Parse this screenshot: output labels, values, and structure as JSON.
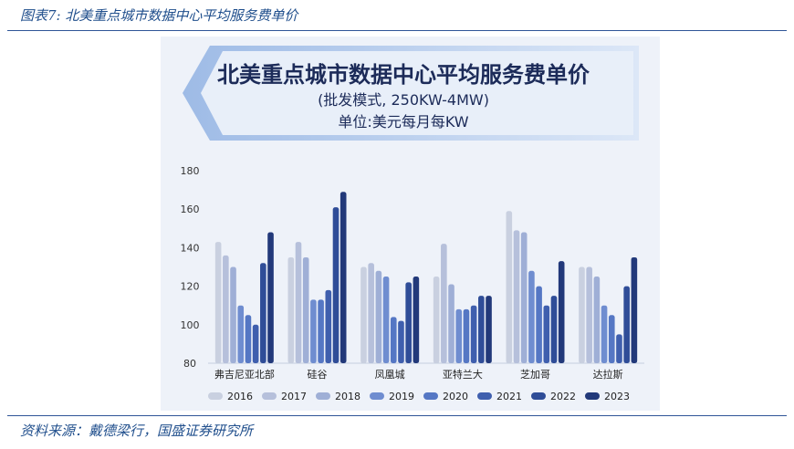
{
  "figure": {
    "caption": "图表7: 北美重点城市数据中心平均服务费单价",
    "source": "资料来源：戴德梁行，国盛证券研究所"
  },
  "chart_data": {
    "type": "bar",
    "title": "北美重点城市数据中心平均服务费单价",
    "subtitle": "(批发模式, 250KW-4MW)",
    "unit_label": "单位:美元每月每KW",
    "xlabel": "",
    "ylabel": "",
    "ylim": [
      80,
      180
    ],
    "yticks": [
      80,
      100,
      120,
      140,
      160,
      180
    ],
    "grid": false,
    "legend_position": "bottom",
    "categories": [
      "弗吉尼亚北部",
      "硅谷",
      "凤凰城",
      "亚特兰大",
      "芝加哥",
      "达拉斯"
    ],
    "series": [
      {
        "name": "2016",
        "color": "#c9d0e0",
        "values": [
          143,
          135,
          130,
          125,
          159,
          130
        ]
      },
      {
        "name": "2017",
        "color": "#b6c0db",
        "values": [
          136,
          143,
          132,
          142,
          149,
          130
        ]
      },
      {
        "name": "2018",
        "color": "#9fafd6",
        "values": [
          130,
          135,
          128,
          121,
          148,
          125
        ]
      },
      {
        "name": "2019",
        "color": "#6f8dd0",
        "values": [
          110,
          113,
          125,
          108,
          128,
          110
        ]
      },
      {
        "name": "2020",
        "color": "#5577c4",
        "values": [
          105,
          113,
          104,
          108,
          120,
          105
        ]
      },
      {
        "name": "2021",
        "color": "#3f5fae",
        "values": [
          100,
          118,
          102,
          110,
          110,
          95
        ]
      },
      {
        "name": "2022",
        "color": "#2f4d98",
        "values": [
          132,
          161,
          122,
          115,
          115,
          120
        ]
      },
      {
        "name": "2023",
        "color": "#22397a",
        "values": [
          148,
          169,
          125,
          115,
          133,
          135
        ]
      }
    ]
  },
  "colors": {
    "accent": "#1f4e8c",
    "banner_light": "#dbe6f6",
    "banner_mid": "#a9c2e8"
  }
}
